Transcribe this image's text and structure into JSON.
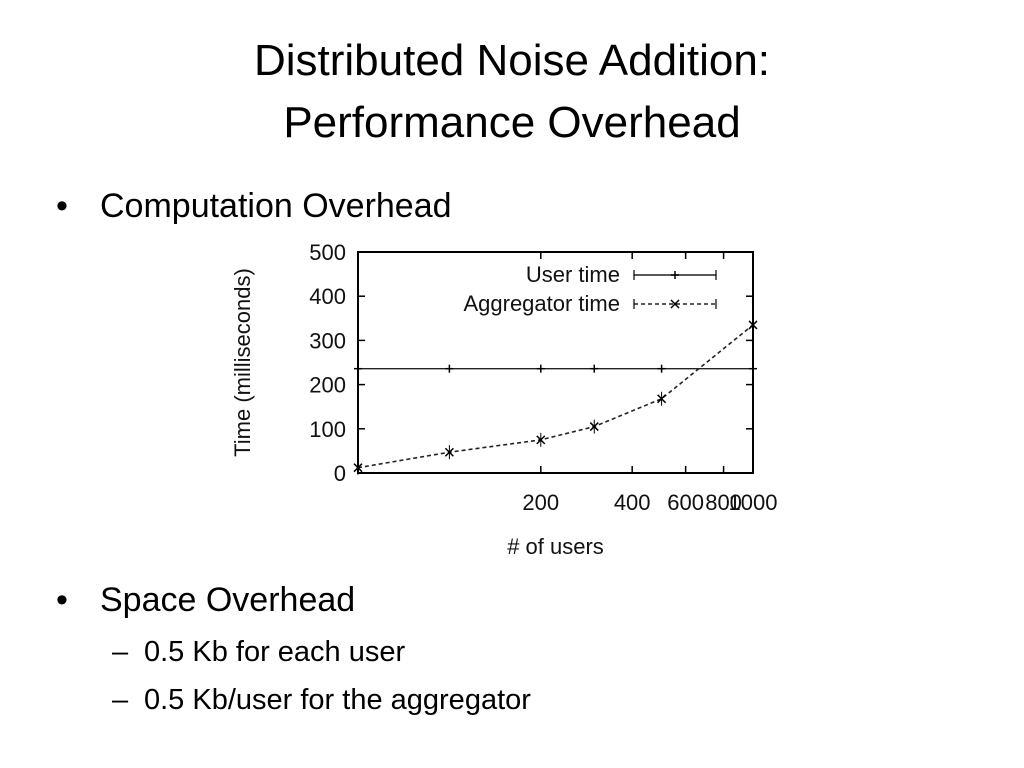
{
  "slide": {
    "title_line1": "Distributed Noise Addition:",
    "title_line2": "Performance Overhead"
  },
  "bullets": {
    "computation": "Computation Overhead",
    "space": "Space Overhead",
    "space_items": [
      "0.5 Kb for each user",
      "0.5 Kb/user for the aggregator"
    ],
    "bullet_glyph": "•",
    "dash_glyph": "–"
  },
  "chart_data": {
    "type": "line",
    "xlabel": "# of users",
    "ylabel": "Time (milliseconds)",
    "xlim": [
      50,
      1000
    ],
    "ylim": [
      0,
      500
    ],
    "xscale": "log",
    "xticks": [
      200,
      400,
      600,
      800,
      1000
    ],
    "yticks": [
      0,
      100,
      200,
      300,
      400,
      500
    ],
    "legend_position": "top-right",
    "grid": false,
    "series": [
      {
        "name": "User time",
        "style": "solid",
        "marker": "+",
        "x": [
          50,
          100,
          200,
          300,
          500,
          1000
        ],
        "y": [
          236,
          236,
          236,
          236,
          236,
          236
        ]
      },
      {
        "name": "Aggregator time",
        "style": "dashed",
        "marker": "x",
        "x": [
          50,
          100,
          200,
          300,
          500,
          1000
        ],
        "y": [
          12,
          47,
          75,
          105,
          168,
          335
        ]
      }
    ]
  }
}
